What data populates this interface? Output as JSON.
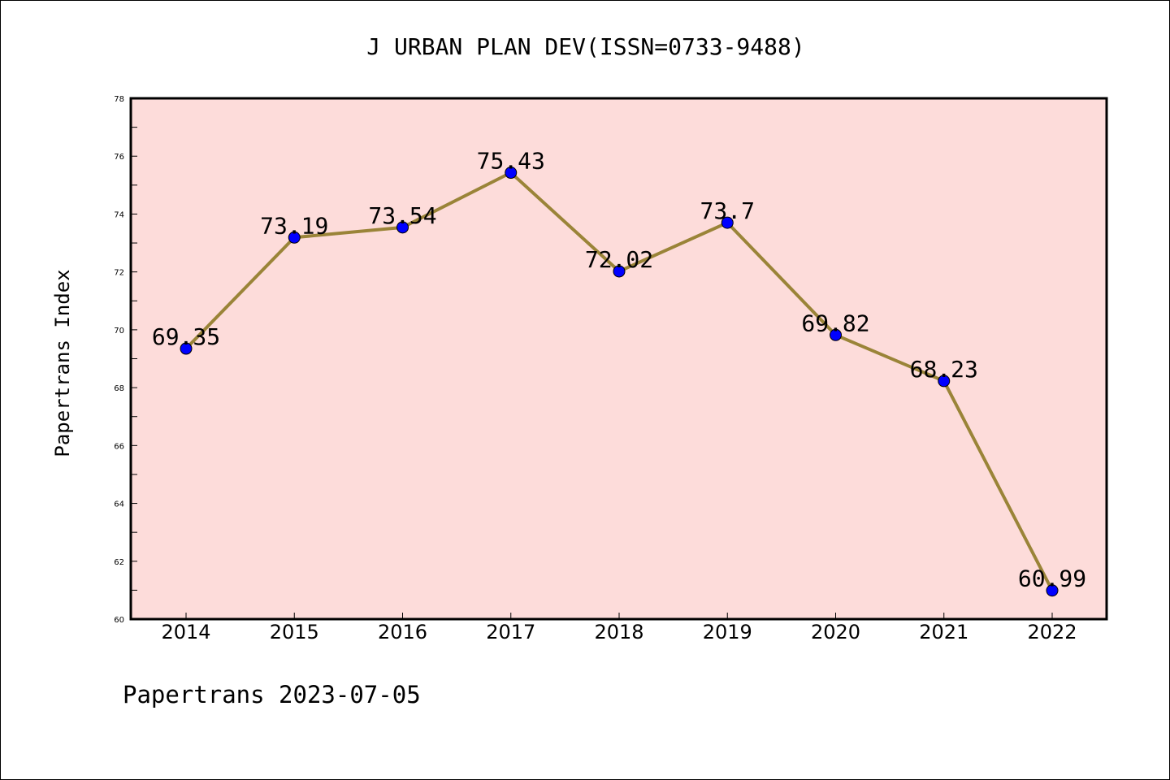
{
  "chart_data": {
    "type": "line",
    "title": "J URBAN PLAN DEV(ISSN=0733-9488)",
    "xlabel": "",
    "ylabel": "Papertrans Index",
    "footer": "Papertrans 2023-07-05",
    "categories": [
      "2014",
      "2015",
      "2016",
      "2017",
      "2018",
      "2019",
      "2020",
      "2021",
      "2022"
    ],
    "series": [
      {
        "values": [
          69.35,
          73.19,
          73.54,
          75.43,
          72.02,
          73.7,
          69.82,
          68.23,
          60.99
        ],
        "labels": [
          "69.35",
          "73.19",
          "73.54",
          "75.43",
          "72.02",
          "73.7",
          "69.82",
          "68.23",
          "60.99"
        ],
        "line_color": "#9A8438",
        "marker_color": "#0000FF"
      }
    ],
    "ylim": [
      60,
      78
    ],
    "yticks": [
      "60",
      "62",
      "64",
      "66",
      "68",
      "70",
      "72",
      "74",
      "76",
      "78"
    ],
    "grid": false,
    "plot_background": "#FDDCDA"
  }
}
